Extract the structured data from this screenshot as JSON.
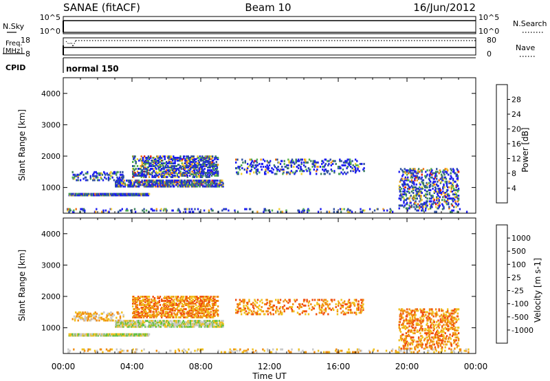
{
  "header": {
    "station": "SANAE (fitACF)",
    "beam": "Beam 10",
    "date": "16/Jun/2012"
  },
  "strips": {
    "sky_label": "N.Sky",
    "search_label": "N.Search",
    "sky_ticks": [
      "10^5",
      "10^0"
    ],
    "search_ticks": [
      "10^5",
      "10^0"
    ],
    "freq_label_1": "Freq.",
    "freq_label_2": "[MHz]",
    "freq_ticks": [
      "18",
      "8"
    ],
    "nave_label": "Nave",
    "nave_ticks": [
      "80",
      "0"
    ],
    "cpid_label": "CPID",
    "cpid_value": "normal 150"
  },
  "chart_data": [
    {
      "type": "heatmap",
      "name": "Power",
      "ylabel": "Slant Range [km]",
      "xlabel": "Time UT",
      "xticks": [
        "00:00",
        "04:00",
        "08:00",
        "12:00",
        "16:00",
        "20:00",
        "00:00"
      ],
      "xlim": [
        0,
        24
      ],
      "yticks": [
        "1000",
        "2000",
        "3000",
        "4000"
      ],
      "ylim": [
        180,
        4500
      ],
      "colorbar": {
        "label": "Power [dB]",
        "ticks": [
          "4",
          "8",
          "12",
          "16",
          "20",
          "24",
          "28"
        ],
        "colors": [
          "#1c1cf0",
          "#2d4fa0",
          "#3c8060",
          "#50b050",
          "#f0d030",
          "#f0a020",
          "#f07010",
          "#e02010"
        ]
      }
    },
    {
      "type": "heatmap",
      "name": "Velocity",
      "ylabel": "Slant Range [km]",
      "xlabel": "Time UT",
      "xticks": [
        "00:00",
        "04:00",
        "08:00",
        "12:00",
        "16:00",
        "20:00",
        "00:00"
      ],
      "xlim": [
        0,
        24
      ],
      "yticks": [
        "1000",
        "2000",
        "3000",
        "4000"
      ],
      "ylim": [
        180,
        4500
      ],
      "colorbar": {
        "label": "Velocity [m s-1]",
        "ticks": [
          "1000",
          "500",
          "100",
          "25",
          "-25",
          "-100",
          "-500",
          "-1000"
        ],
        "colors": [
          "#2040c0",
          "#3a6ac8",
          "#3a9040",
          "#60c040",
          "#c8c8c8",
          "#f0c020",
          "#f08c10",
          "#f05010",
          "#e01010"
        ]
      }
    }
  ],
  "x_axis_title": "Time UT"
}
